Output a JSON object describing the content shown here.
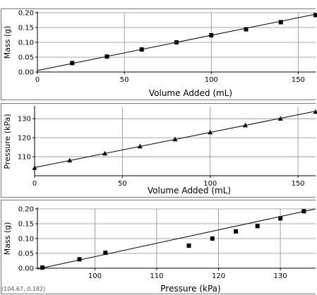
{
  "readout": "(104.67, 0.182)",
  "chart_data": [
    {
      "type": "scatter",
      "xlabel": "Volume Added (mL)",
      "ylabel": "Mass (g)",
      "xlim": [
        0,
        160
      ],
      "ylim": [
        0,
        0.2
      ],
      "xticks": [
        {
          "value": 0,
          "label": "0"
        },
        {
          "value": 50,
          "label": "50"
        },
        {
          "value": 100,
          "label": "100"
        },
        {
          "value": 150,
          "label": "150"
        }
      ],
      "yticks": [
        {
          "value": 0,
          "label": "0.00"
        },
        {
          "value": 0.05,
          "label": "0.05"
        },
        {
          "value": 0.1,
          "label": "0.10"
        },
        {
          "value": 0.15,
          "label": "0.15"
        },
        {
          "value": 0.2,
          "label": "0.20"
        }
      ],
      "marker": "square",
      "grid": true,
      "x": [
        20,
        40,
        60,
        80,
        100,
        120,
        140,
        160
      ],
      "y": [
        0.03,
        0.052,
        0.076,
        0.1,
        0.124,
        0.144,
        0.168,
        0.192
      ],
      "fit_line": {
        "x": [
          0,
          160
        ],
        "y": [
          0.005,
          0.195
        ]
      }
    },
    {
      "type": "scatter",
      "xlabel": "Volume Added (mL)",
      "ylabel": "Pressure (kPa)",
      "xlim": [
        0,
        160
      ],
      "ylim": [
        100,
        136
      ],
      "xticks": [
        {
          "value": 0,
          "label": "0"
        },
        {
          "value": 50,
          "label": "50"
        },
        {
          "value": 100,
          "label": "100"
        },
        {
          "value": 150,
          "label": "150"
        }
      ],
      "yticks": [
        {
          "value": 110,
          "label": "110"
        },
        {
          "value": 120,
          "label": "120"
        },
        {
          "value": 130,
          "label": "130"
        }
      ],
      "marker": "triangle",
      "grid": true,
      "x": [
        0,
        20,
        40,
        60,
        80,
        100,
        120,
        140,
        160
      ],
      "y": [
        104.2,
        108.1,
        111.8,
        115.5,
        119.2,
        122.9,
        126.6,
        130.1,
        133.7
      ],
      "fit_line": {
        "x": [
          0,
          160
        ],
        "y": [
          104.3,
          133.9
        ]
      }
    },
    {
      "type": "scatter",
      "xlabel": "Pressure (kPa)",
      "ylabel": "Mass (g)",
      "xlim": [
        90.7,
        135.7
      ],
      "ylim": [
        0,
        0.2
      ],
      "xticks": [
        {
          "value": 100,
          "label": "100"
        },
        {
          "value": 110,
          "label": "110"
        },
        {
          "value": 120,
          "label": "120"
        },
        {
          "value": 130,
          "label": "130"
        }
      ],
      "yticks": [
        {
          "value": 0,
          "label": "0.00"
        },
        {
          "value": 0.05,
          "label": "0.05"
        },
        {
          "value": 0.1,
          "label": "0.10"
        },
        {
          "value": 0.15,
          "label": "0.15"
        },
        {
          "value": 0.2,
          "label": "0.20"
        }
      ],
      "marker": "square",
      "grid": true,
      "x": [
        91.5,
        97.5,
        101.7,
        115.2,
        119.0,
        122.8,
        126.3,
        130.0,
        133.8
      ],
      "y": [
        0.002,
        0.03,
        0.052,
        0.076,
        0.1,
        0.124,
        0.142,
        0.168,
        0.192
      ],
      "fit_line": {
        "x": [
          90.7,
          135.7
        ],
        "y": [
          -0.003,
          0.2
        ]
      }
    }
  ]
}
